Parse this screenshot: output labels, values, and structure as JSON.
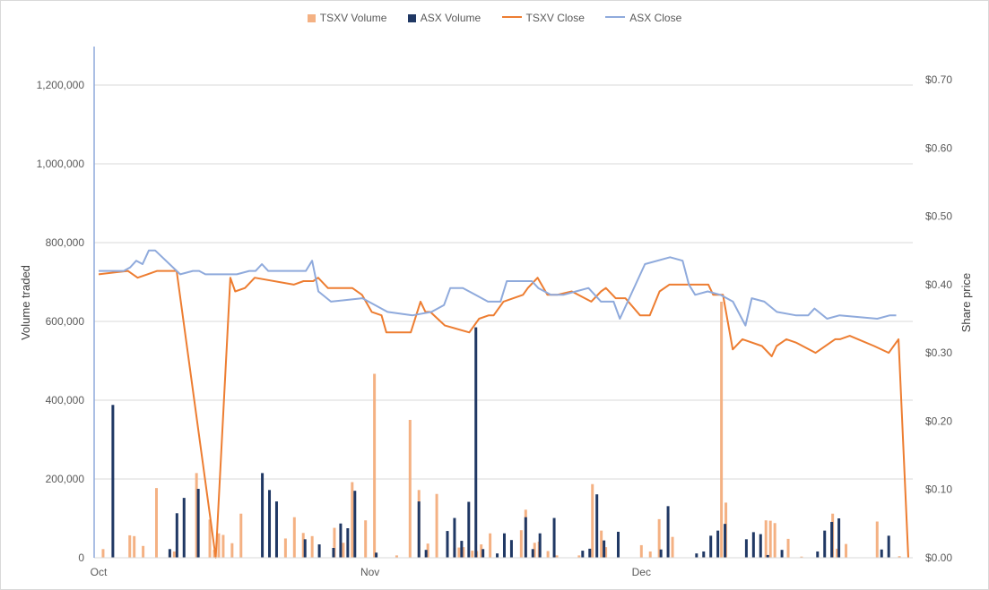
{
  "chart_data": {
    "type": "bar",
    "combo": "bar+line",
    "ylabel": "Volume traded",
    "y2label": "Share price",
    "ylim": [
      0,
      1200000
    ],
    "y2lim": [
      0,
      0.7
    ],
    "yticks": [
      "0",
      "200,000",
      "400,000",
      "600,000",
      "800,000",
      "1,000,000",
      "1,200,000"
    ],
    "y2ticks": [
      "$0.00",
      "$0.10",
      "$0.20",
      "$0.30",
      "$0.40",
      "$0.50",
      "$0.60",
      "$0.70"
    ],
    "xticks": [
      "Oct",
      "Nov",
      "Dec"
    ],
    "grid": true,
    "legend_position": "top-center",
    "colors": {
      "tsxv_volume": "#f4b183",
      "asx_volume": "#203864",
      "tsxv_close": "#ed7d31",
      "asx_close": "#8faadc",
      "grid": "#d9d9d9",
      "axis": "#8faadc",
      "text": "#595959"
    },
    "series": [
      {
        "name": "TSXV Volume",
        "kind": "bar",
        "axis": "left",
        "points": [
          [
            1,
            22000
          ],
          [
            7,
            57000
          ],
          [
            8,
            55000
          ],
          [
            10,
            30000
          ],
          [
            13,
            177000
          ],
          [
            16,
            12000
          ],
          [
            17,
            16000
          ],
          [
            22,
            215000
          ],
          [
            25,
            97000
          ],
          [
            26,
            20000
          ],
          [
            27,
            62000
          ],
          [
            28,
            58000
          ],
          [
            30,
            37000
          ],
          [
            32,
            112000
          ],
          [
            40,
            10000
          ],
          [
            42,
            49000
          ],
          [
            44,
            103000
          ],
          [
            46,
            63000
          ],
          [
            48,
            55000
          ],
          [
            53,
            76000
          ],
          [
            55,
            38000
          ],
          [
            57,
            192000
          ],
          [
            60,
            95000
          ],
          [
            62,
            467000
          ],
          [
            67,
            6000
          ],
          [
            70,
            350000
          ],
          [
            72,
            172000
          ],
          [
            74,
            36000
          ],
          [
            76,
            162000
          ],
          [
            80,
            25000
          ],
          [
            81,
            26000
          ],
          [
            82,
            27000
          ],
          [
            84,
            18000
          ],
          [
            85,
            17000
          ],
          [
            86,
            34000
          ],
          [
            88,
            62000
          ],
          [
            95,
            70000
          ],
          [
            96,
            122000
          ],
          [
            98,
            38000
          ],
          [
            99,
            41000
          ],
          [
            101,
            17000
          ],
          [
            103,
            6000
          ],
          [
            108,
            6000
          ],
          [
            111,
            187000
          ],
          [
            113,
            69000
          ],
          [
            114,
            27000
          ],
          [
            122,
            32000
          ],
          [
            124,
            16000
          ],
          [
            126,
            98000
          ],
          [
            128,
            113000
          ],
          [
            129,
            53000
          ],
          [
            131,
            1000
          ],
          [
            136,
            6000
          ],
          [
            140,
            650000
          ],
          [
            141,
            140000
          ],
          [
            150,
            95000
          ],
          [
            151,
            94000
          ],
          [
            152,
            88000
          ],
          [
            155,
            48000
          ],
          [
            158,
            3000
          ],
          [
            165,
            112000
          ],
          [
            166,
            23000
          ],
          [
            168,
            35000
          ],
          [
            175,
            92000
          ],
          [
            180,
            4000
          ]
        ]
      },
      {
        "name": "ASX Volume",
        "kind": "bar",
        "axis": "left",
        "points": [
          [
            2,
            388000
          ],
          [
            10,
            22000
          ],
          [
            11,
            113000
          ],
          [
            12,
            152000
          ],
          [
            14,
            175000
          ],
          [
            23,
            215000
          ],
          [
            24,
            172000
          ],
          [
            25,
            143000
          ],
          [
            29,
            47000
          ],
          [
            31,
            34000
          ],
          [
            33,
            25000
          ],
          [
            34,
            87000
          ],
          [
            35,
            75000
          ],
          [
            36,
            170000
          ],
          [
            39,
            13000
          ],
          [
            45,
            143000
          ],
          [
            46,
            20000
          ],
          [
            49,
            68000
          ],
          [
            50,
            101000
          ],
          [
            51,
            43000
          ],
          [
            52,
            142000
          ],
          [
            53,
            585000
          ],
          [
            54,
            22000
          ],
          [
            56,
            11000
          ],
          [
            57,
            62000
          ],
          [
            58,
            45000
          ],
          [
            60,
            103000
          ],
          [
            61,
            22000
          ],
          [
            62,
            62000
          ],
          [
            64,
            101000
          ],
          [
            68,
            18000
          ],
          [
            69,
            23000
          ],
          [
            70,
            161000
          ],
          [
            71,
            44000
          ],
          [
            73,
            66000
          ],
          [
            79,
            21000
          ],
          [
            80,
            131000
          ],
          [
            84,
            11000
          ],
          [
            85,
            16000
          ],
          [
            86,
            56000
          ],
          [
            87,
            69000
          ],
          [
            88,
            86000
          ],
          [
            91,
            47000
          ],
          [
            92,
            65000
          ],
          [
            93,
            60000
          ],
          [
            94,
            7000
          ],
          [
            96,
            20000
          ],
          [
            101,
            16000
          ],
          [
            102,
            69000
          ],
          [
            103,
            91000
          ],
          [
            104,
            100000
          ],
          [
            110,
            21000
          ],
          [
            111,
            56000
          ]
        ]
      },
      {
        "name": "TSXV Close",
        "kind": "line",
        "axis": "right",
        "points": [
          [
            0,
            0.415
          ],
          [
            6,
            0.42
          ],
          [
            8,
            0.41
          ],
          [
            10,
            0.415
          ],
          [
            12,
            0.42
          ],
          [
            14,
            0.42
          ],
          [
            16,
            0.42
          ],
          [
            24,
            0.0
          ],
          [
            27,
            0.41
          ],
          [
            28,
            0.39
          ],
          [
            30,
            0.395
          ],
          [
            32,
            0.41
          ],
          [
            40,
            0.4
          ],
          [
            42,
            0.405
          ],
          [
            44,
            0.405
          ],
          [
            45,
            0.41
          ],
          [
            47,
            0.395
          ],
          [
            52,
            0.395
          ],
          [
            54,
            0.385
          ],
          [
            56,
            0.36
          ],
          [
            58,
            0.355
          ],
          [
            59,
            0.33
          ],
          [
            64,
            0.33
          ],
          [
            66,
            0.375
          ],
          [
            67,
            0.36
          ],
          [
            68,
            0.36
          ],
          [
            71,
            0.34
          ],
          [
            76,
            0.33
          ],
          [
            78,
            0.35
          ],
          [
            80,
            0.355
          ],
          [
            81,
            0.355
          ],
          [
            83,
            0.375
          ],
          [
            87,
            0.385
          ],
          [
            88,
            0.395
          ],
          [
            90,
            0.41
          ],
          [
            92,
            0.385
          ],
          [
            94,
            0.385
          ],
          [
            97,
            0.39
          ],
          [
            101,
            0.375
          ],
          [
            103,
            0.39
          ],
          [
            104,
            0.395
          ],
          [
            106,
            0.38
          ],
          [
            108,
            0.38
          ],
          [
            111,
            0.355
          ],
          [
            113,
            0.355
          ],
          [
            115,
            0.39
          ],
          [
            117,
            0.4
          ],
          [
            125,
            0.4
          ],
          [
            126,
            0.385
          ],
          [
            128,
            0.385
          ],
          [
            130,
            0.305
          ],
          [
            132,
            0.32
          ],
          [
            136,
            0.31
          ],
          [
            138,
            0.295
          ],
          [
            139,
            0.31
          ],
          [
            141,
            0.32
          ],
          [
            143,
            0.315
          ],
          [
            147,
            0.3
          ],
          [
            151,
            0.32
          ],
          [
            152,
            0.32
          ],
          [
            154,
            0.325
          ],
          [
            159,
            0.31
          ],
          [
            162,
            0.3
          ],
          [
            164,
            0.32
          ],
          [
            166,
            0.0
          ]
        ]
      },
      {
        "name": "ASX Close",
        "kind": "line",
        "axis": "right",
        "points": [
          [
            0,
            0.42
          ],
          [
            4,
            0.42
          ],
          [
            5,
            0.425
          ],
          [
            6,
            0.435
          ],
          [
            7,
            0.43
          ],
          [
            8,
            0.45
          ],
          [
            9,
            0.45
          ],
          [
            13,
            0.415
          ],
          [
            15,
            0.42
          ],
          [
            16,
            0.42
          ],
          [
            17,
            0.415
          ],
          [
            22,
            0.415
          ],
          [
            24,
            0.42
          ],
          [
            25,
            0.42
          ],
          [
            26,
            0.43
          ],
          [
            27,
            0.42
          ],
          [
            33,
            0.42
          ],
          [
            34,
            0.435
          ],
          [
            35,
            0.39
          ],
          [
            37,
            0.375
          ],
          [
            42,
            0.38
          ],
          [
            44,
            0.37
          ],
          [
            46,
            0.36
          ],
          [
            50,
            0.355
          ],
          [
            53,
            0.36
          ],
          [
            55,
            0.37
          ],
          [
            56,
            0.395
          ],
          [
            58,
            0.395
          ],
          [
            60,
            0.385
          ],
          [
            62,
            0.375
          ],
          [
            64,
            0.375
          ],
          [
            65,
            0.405
          ],
          [
            69,
            0.405
          ],
          [
            70,
            0.395
          ],
          [
            72,
            0.385
          ],
          [
            74,
            0.385
          ],
          [
            76,
            0.39
          ],
          [
            78,
            0.395
          ],
          [
            80,
            0.375
          ],
          [
            82,
            0.375
          ],
          [
            83,
            0.35
          ],
          [
            85,
            0.39
          ],
          [
            87,
            0.43
          ],
          [
            91,
            0.44
          ],
          [
            93,
            0.435
          ],
          [
            94,
            0.4
          ],
          [
            95,
            0.385
          ],
          [
            97,
            0.39
          ],
          [
            99,
            0.385
          ],
          [
            101,
            0.375
          ],
          [
            103,
            0.34
          ],
          [
            104,
            0.38
          ],
          [
            106,
            0.375
          ],
          [
            108,
            0.36
          ],
          [
            111,
            0.355
          ],
          [
            113,
            0.355
          ],
          [
            114,
            0.365
          ],
          [
            116,
            0.35
          ],
          [
            118,
            0.355
          ],
          [
            124,
            0.35
          ],
          [
            126,
            0.355
          ],
          [
            127,
            0.355
          ]
        ]
      }
    ]
  }
}
